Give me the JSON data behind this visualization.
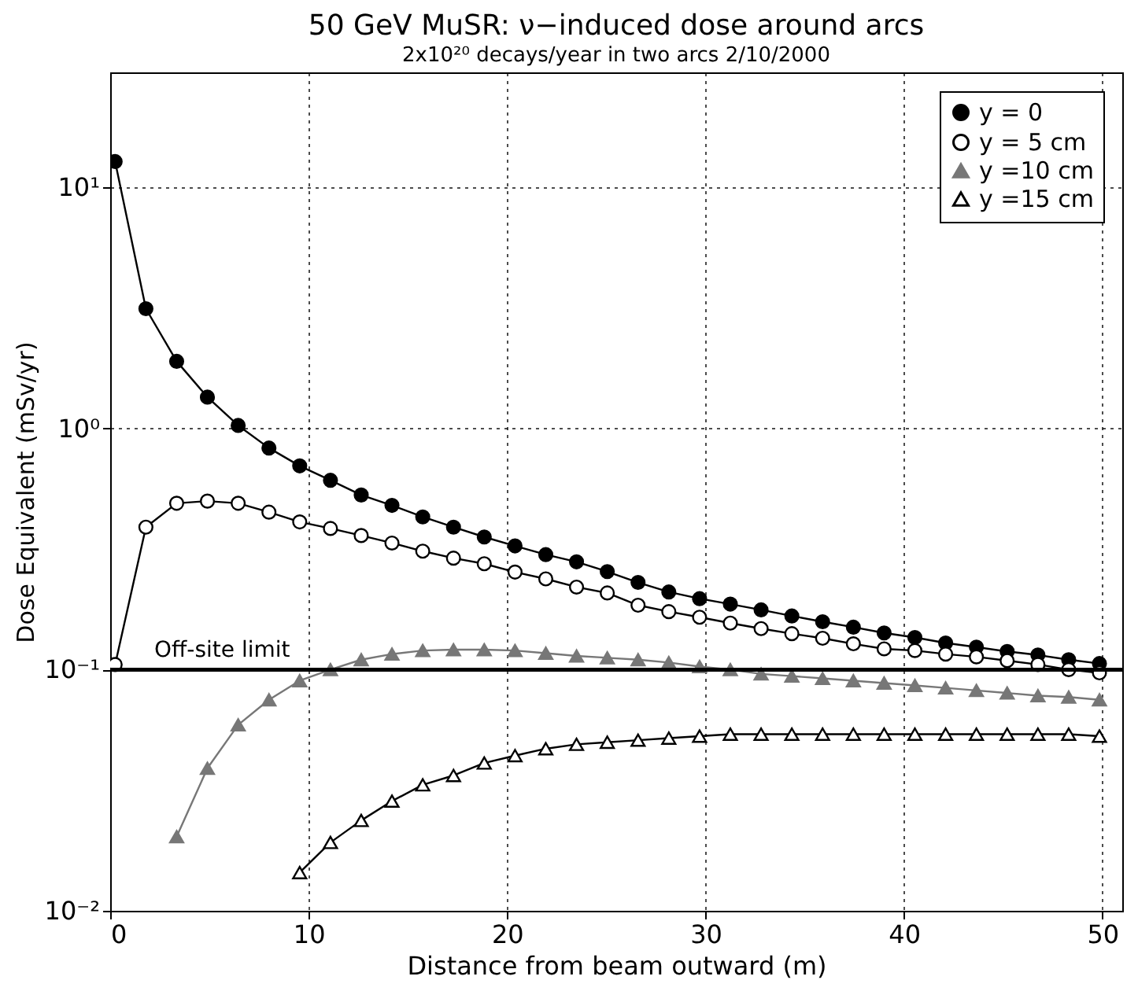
{
  "chart_data": {
    "type": "line",
    "title": "50 GeV MuSR: ν−induced dose around arcs",
    "subtitle": "2x10²⁰ decays/year in two arcs      2/10/2000",
    "xlabel": "Distance from beam outward (m)",
    "ylabel": "Dose Equivalent (mSv/yr)",
    "x": [
      0.25,
      1.8,
      3.35,
      4.9,
      6.45,
      8.0,
      9.55,
      11.1,
      12.65,
      14.2,
      15.75,
      17.3,
      18.85,
      20.4,
      21.95,
      23.5,
      25.05,
      26.6,
      28.15,
      29.7,
      31.25,
      32.8,
      34.35,
      35.9,
      37.45,
      39.0,
      40.55,
      42.1,
      43.65,
      45.2,
      46.75,
      48.3,
      49.85
    ],
    "series": [
      {
        "name": "y = 0",
        "color": "#000000",
        "marker": "circle",
        "values": [
          12.8,
          3.14,
          1.9,
          1.35,
          1.03,
          0.83,
          0.7,
          0.61,
          0.53,
          0.48,
          0.43,
          0.39,
          0.355,
          0.326,
          0.3,
          0.28,
          0.255,
          0.23,
          0.21,
          0.197,
          0.187,
          0.177,
          0.167,
          0.158,
          0.15,
          0.142,
          0.136,
          0.129,
          0.124,
          0.119,
          0.115,
          0.11,
          0.106
        ]
      },
      {
        "name": "y = 5 cm",
        "color": "#000000",
        "marker": "circle",
        "values": [
          0.105,
          0.39,
          0.49,
          0.5,
          0.49,
          0.45,
          0.41,
          0.385,
          0.36,
          0.335,
          0.31,
          0.29,
          0.275,
          0.254,
          0.238,
          0.22,
          0.208,
          0.185,
          0.174,
          0.165,
          0.156,
          0.148,
          0.141,
          0.135,
          0.128,
          0.122,
          0.12,
          0.116,
          0.113,
          0.109,
          0.105,
          0.1,
          0.097
        ]
      },
      {
        "name": "y =10 cm",
        "color": "#777777",
        "marker": "triangle",
        "values": [
          null,
          null,
          0.0203,
          0.039,
          0.059,
          0.075,
          0.09,
          0.1,
          0.11,
          0.116,
          0.12,
          0.121,
          0.121,
          0.12,
          0.117,
          0.114,
          0.112,
          0.11,
          0.107,
          0.103,
          0.1,
          0.096,
          0.094,
          0.092,
          0.09,
          0.088,
          0.086,
          0.084,
          0.082,
          0.08,
          0.078,
          0.077,
          0.075
        ]
      },
      {
        "name": "y =15 cm",
        "color": "#000000",
        "marker": "triangle",
        "values": [
          null,
          null,
          null,
          null,
          null,
          null,
          0.0144,
          0.0192,
          0.0237,
          0.0285,
          0.0333,
          0.0364,
          0.041,
          0.044,
          0.047,
          0.049,
          0.05,
          0.051,
          0.052,
          0.053,
          0.054,
          0.054,
          0.054,
          0.054,
          0.054,
          0.054,
          0.054,
          0.054,
          0.054,
          0.054,
          0.054,
          0.054,
          0.053
        ]
      }
    ],
    "ref_lines": [
      {
        "axis": "y",
        "value": 0.1,
        "label": "Off-site limit",
        "color": "#000000"
      }
    ],
    "log": "y",
    "xlim": [
      0,
      51
    ],
    "xticks": [
      0,
      10,
      20,
      30,
      40,
      50
    ],
    "ylim": [
      0.01,
      30
    ],
    "yticks": [
      {
        "value": 0.01,
        "label": "10⁻²"
      },
      {
        "value": 0.1,
        "label": "10⁻¹"
      },
      {
        "value": 1,
        "label": "10⁰"
      },
      {
        "value": 10,
        "label": "10¹"
      }
    ],
    "grid": true,
    "legend": "top right",
    "line_style": "solid"
  }
}
